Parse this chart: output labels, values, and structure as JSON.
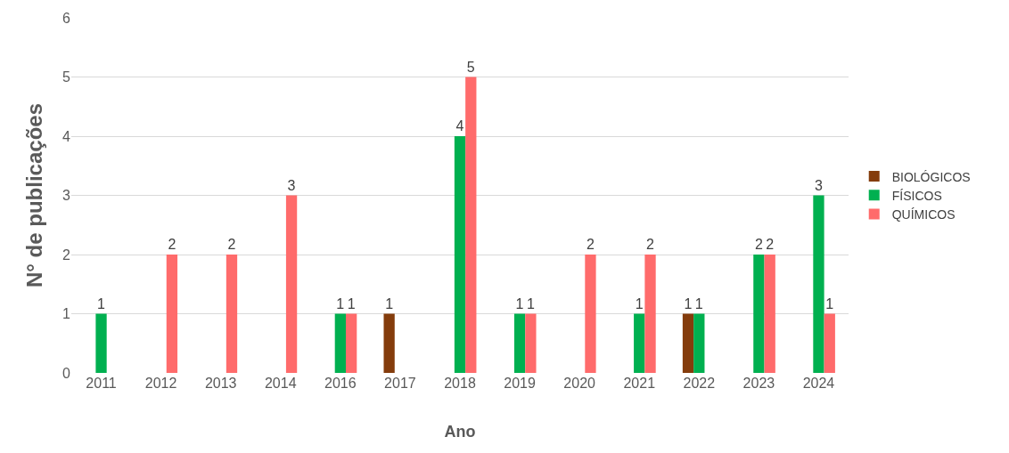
{
  "chart_data": {
    "type": "bar",
    "xlabel": "Ano",
    "ylabel": "N° de publicações",
    "categories": [
      "2011",
      "2012",
      "2013",
      "2014",
      "2016",
      "2017",
      "2018",
      "2019",
      "2020",
      "2021",
      "2022",
      "2023",
      "2024"
    ],
    "series": [
      {
        "name": "BIOLÓGICOS",
        "color": "#843c0c",
        "values": [
          null,
          null,
          null,
          null,
          null,
          1,
          null,
          null,
          null,
          null,
          1,
          null,
          null
        ]
      },
      {
        "name": "FÍSICOS",
        "color": "#00b050",
        "values": [
          1,
          null,
          null,
          null,
          1,
          null,
          4,
          1,
          null,
          1,
          1,
          2,
          3
        ]
      },
      {
        "name": "QUÍMICOS",
        "color": "#ff6b6b",
        "values": [
          null,
          2,
          2,
          3,
          1,
          null,
          5,
          1,
          2,
          2,
          null,
          2,
          1
        ]
      }
    ],
    "ylim": [
      0,
      6
    ],
    "yticks": [
      0,
      1,
      2,
      3,
      4,
      5,
      6
    ],
    "grid": "y",
    "legend": "right",
    "data_labels": true
  }
}
